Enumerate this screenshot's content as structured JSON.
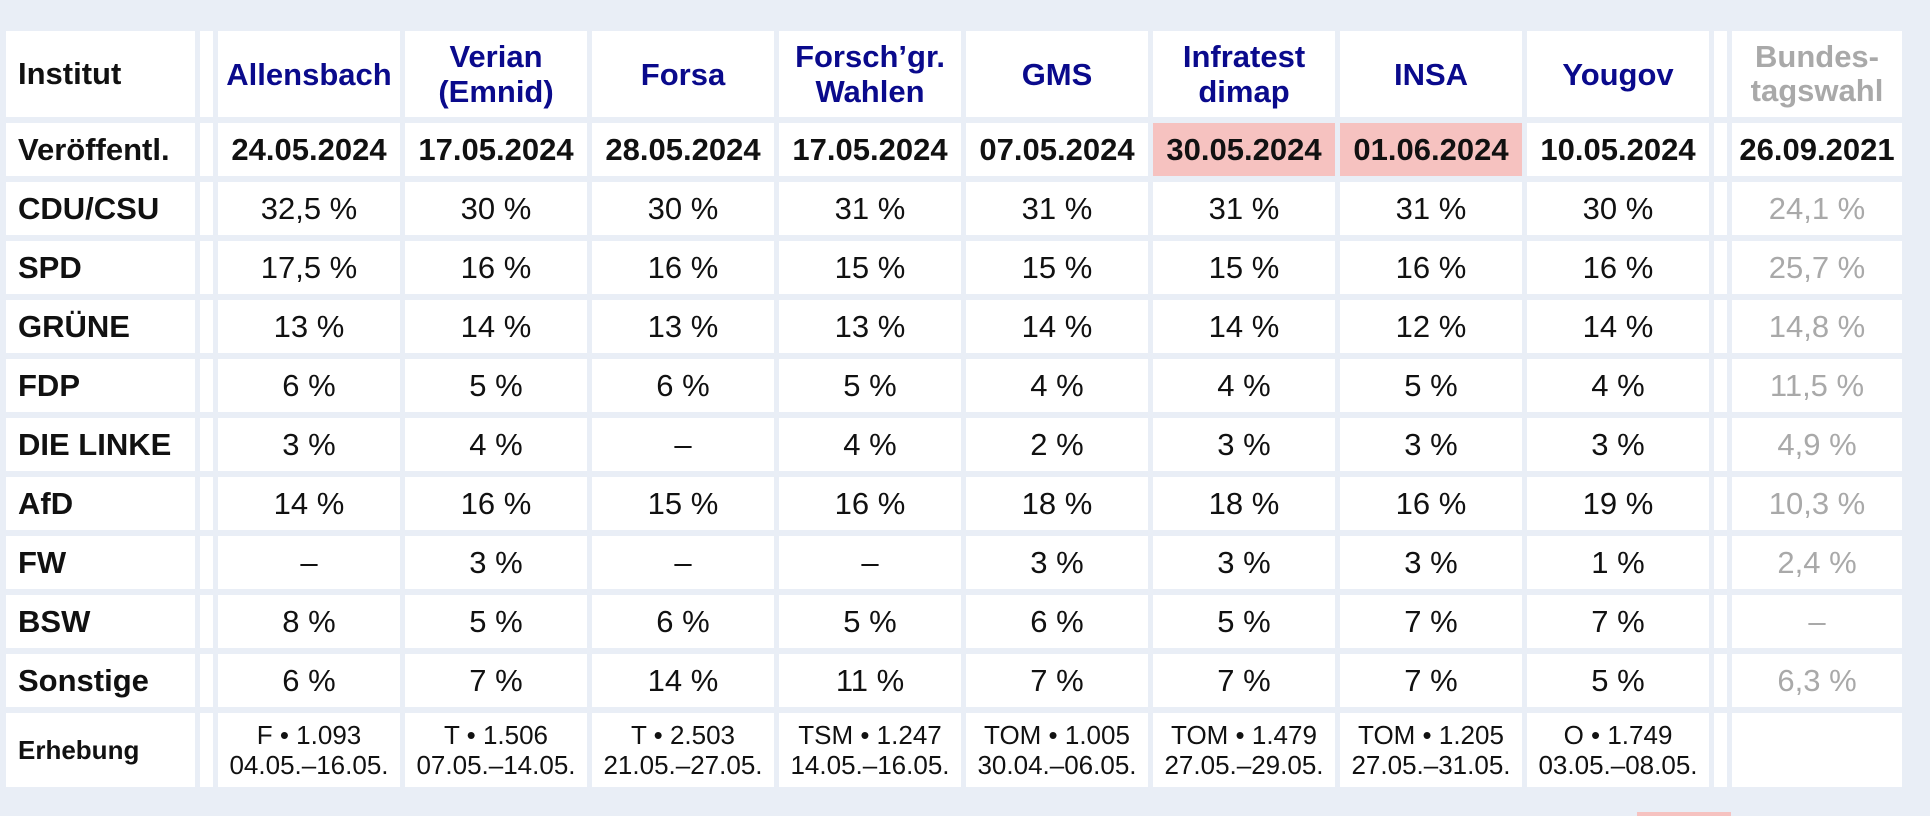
{
  "table": {
    "institut_label": "Institut",
    "institutes": [
      {
        "name_line1": "Allensbach",
        "name_line2": ""
      },
      {
        "name_line1": "Verian",
        "name_line2": "(Emnid)"
      },
      {
        "name_line1": "Forsa",
        "name_line2": ""
      },
      {
        "name_line1": "Forsch’gr.",
        "name_line2": "Wahlen"
      },
      {
        "name_line1": "GMS",
        "name_line2": ""
      },
      {
        "name_line1": "Infratest",
        "name_line2": "dimap"
      },
      {
        "name_line1": "INSA",
        "name_line2": ""
      },
      {
        "name_line1": "Yougov",
        "name_line2": ""
      }
    ],
    "bundestagswahl": {
      "name_line1": "Bundes-",
      "name_line2": "tagswahl"
    },
    "published_label": "Veröffentl.",
    "published_dates": [
      "24.05.2024",
      "17.05.2024",
      "28.05.2024",
      "17.05.2024",
      "07.05.2024",
      "30.05.2024",
      "01.06.2024",
      "10.05.2024"
    ],
    "published_highlighted": [
      false,
      false,
      false,
      false,
      false,
      true,
      true,
      false
    ],
    "bundestagswahl_date": "26.09.2021",
    "highlight_color": "#f6c2c0",
    "institute_color": "#0a0a8c",
    "election_color": "#a9a9a9",
    "parties": [
      {
        "name": "CDU/CSU",
        "values": [
          "32,5 %",
          "30 %",
          "30 %",
          "31 %",
          "31 %",
          "31 %",
          "31 %",
          "30 %"
        ],
        "election": "24,1 %"
      },
      {
        "name": "SPD",
        "values": [
          "17,5 %",
          "16 %",
          "16 %",
          "15 %",
          "15 %",
          "15 %",
          "16 %",
          "16 %"
        ],
        "election": "25,7 %"
      },
      {
        "name": "GRÜNE",
        "values": [
          "13 %",
          "14 %",
          "13 %",
          "13 %",
          "14 %",
          "14 %",
          "12 %",
          "14 %"
        ],
        "election": "14,8 %"
      },
      {
        "name": "FDP",
        "values": [
          "6 %",
          "5 %",
          "6 %",
          "5 %",
          "4 %",
          "4 %",
          "5 %",
          "4 %"
        ],
        "election": "11,5 %"
      },
      {
        "name": "DIE LINKE",
        "values": [
          "3 %",
          "4 %",
          "–",
          "4 %",
          "2 %",
          "3 %",
          "3 %",
          "3 %"
        ],
        "election": "4,9 %"
      },
      {
        "name": "AfD",
        "values": [
          "14 %",
          "16 %",
          "15 %",
          "16 %",
          "18 %",
          "18 %",
          "16 %",
          "19 %"
        ],
        "election": "10,3 %"
      },
      {
        "name": "FW",
        "values": [
          "–",
          "3 %",
          "–",
          "–",
          "3 %",
          "3 %",
          "3 %",
          "1 %"
        ],
        "election": "2,4 %"
      },
      {
        "name": "BSW",
        "values": [
          "8 %",
          "5 %",
          "6 %",
          "5 %",
          "6 %",
          "5 %",
          "7 %",
          "7 %"
        ],
        "election": "–"
      },
      {
        "name": "Sonstige",
        "values": [
          "6 %",
          "7 %",
          "14 %",
          "11 %",
          "7 %",
          "7 %",
          "7 %",
          "5 %"
        ],
        "election": "6,3 %"
      }
    ],
    "survey_label": "Erhebung",
    "surveys": [
      {
        "method": "F • 1.093",
        "period": "04.05.–16.05."
      },
      {
        "method": "T • 1.506",
        "period": "07.05.–14.05."
      },
      {
        "method": "T • 2.503",
        "period": "21.05.–27.05."
      },
      {
        "method": "TSM • 1.247",
        "period": "14.05.–16.05."
      },
      {
        "method": "TOM • 1.005",
        "period": "30.04.–06.05."
      },
      {
        "method": "TOM • 1.479",
        "period": "27.05.–29.05."
      },
      {
        "method": "TOM • 1.205",
        "period": "27.05.–31.05."
      },
      {
        "method": "O • 1.749",
        "period": "03.05.–08.05."
      }
    ],
    "bundestagswahl_survey": ""
  }
}
